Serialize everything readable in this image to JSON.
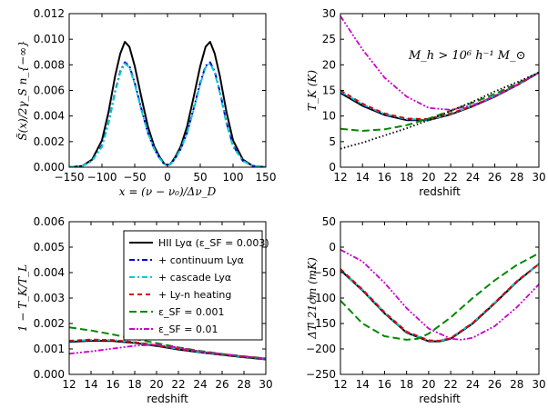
{
  "chart_data": [
    {
      "type": "line",
      "xlabel": "x = (ν − ν₀)/Δν_D",
      "ylabel": "S̃(x)/2γ_S n_{−∞}",
      "xlim": [
        -150,
        150
      ],
      "ylim": [
        0,
        0.012
      ],
      "xticks": [
        "−150",
        "−100",
        "−50",
        "0",
        "50",
        "100",
        "150"
      ],
      "yticks": [
        "0.000",
        "0.002",
        "0.004",
        "0.006",
        "0.008",
        "0.010",
        "0.012"
      ],
      "series": [
        {
          "color": "#000000",
          "dash": "solid",
          "x": [
            -150,
            -130,
            -115,
            -100,
            -90,
            -80,
            -72,
            -65,
            -58,
            -50,
            -40,
            -30,
            -20,
            -12,
            -6,
            -3,
            0,
            3,
            6,
            12,
            20,
            30,
            40,
            50,
            58,
            65,
            72,
            80,
            90,
            100,
            115,
            130,
            150
          ],
          "y": [
            0.0,
            0.0001,
            0.0006,
            0.0021,
            0.0043,
            0.0071,
            0.0089,
            0.0098,
            0.0094,
            0.0079,
            0.0055,
            0.0032,
            0.0016,
            0.0008,
            0.00035,
            0.0002,
            0.0002,
            0.0002,
            0.00035,
            0.0008,
            0.0016,
            0.0032,
            0.0055,
            0.0079,
            0.0094,
            0.0098,
            0.0089,
            0.0071,
            0.0043,
            0.0021,
            0.0006,
            0.0001,
            0.0
          ]
        },
        {
          "color": "#0000cc",
          "dash": "dashdot",
          "x": [
            -150,
            -130,
            -115,
            -100,
            -90,
            -80,
            -72,
            -65,
            -58,
            -50,
            -40,
            -30,
            -20,
            -12,
            -6,
            -3,
            0,
            3,
            6,
            12,
            20,
            30,
            40,
            50,
            58,
            65,
            72,
            80,
            90,
            100,
            115,
            130,
            150
          ],
          "y": [
            0.0,
            0.0001,
            0.0005,
            0.0017,
            0.0035,
            0.0059,
            0.0075,
            0.0082,
            0.0079,
            0.0066,
            0.0046,
            0.0027,
            0.0014,
            0.0007,
            0.0003,
            0.0002,
            0.0002,
            0.0002,
            0.0003,
            0.0007,
            0.0014,
            0.0027,
            0.0046,
            0.0066,
            0.0079,
            0.0082,
            0.0075,
            0.0059,
            0.0035,
            0.0017,
            0.0005,
            0.0001,
            0.0
          ]
        },
        {
          "color": "#00cccc",
          "dash": "dashdot",
          "x": [
            -150,
            -130,
            -115,
            -100,
            -90,
            -80,
            -72,
            -65,
            -58,
            -50,
            -40,
            -30,
            -20,
            -12,
            -6,
            -3,
            0,
            3,
            6,
            12,
            20,
            30,
            40,
            50,
            58,
            65,
            72,
            80,
            90,
            100,
            115,
            130,
            150
          ],
          "y": [
            0.0,
            0.0001,
            0.0005,
            0.0016,
            0.0034,
            0.0058,
            0.0074,
            0.0081,
            0.0078,
            0.0065,
            0.0045,
            0.0027,
            0.0014,
            0.0007,
            0.0003,
            0.0002,
            0.0002,
            0.0002,
            0.0003,
            0.0007,
            0.0014,
            0.0027,
            0.0045,
            0.0065,
            0.0078,
            0.0081,
            0.0074,
            0.0058,
            0.0034,
            0.0016,
            0.0005,
            0.0001,
            0.0
          ]
        }
      ]
    },
    {
      "type": "line",
      "xlabel": "redshift",
      "ylabel": "T_K (K)",
      "annotation": "M_h > 10⁶ h⁻¹ M_⊙",
      "xlim": [
        12,
        30
      ],
      "ylim": [
        0,
        30
      ],
      "xticks": [
        "12",
        "14",
        "16",
        "18",
        "20",
        "22",
        "24",
        "26",
        "28",
        "30"
      ],
      "yticks": [
        "0",
        "5",
        "10",
        "15",
        "20",
        "25",
        "30"
      ],
      "series": [
        {
          "color": "#000000",
          "dash": "solid",
          "x": [
            12,
            14,
            16,
            18,
            20,
            22,
            24,
            26,
            28,
            30
          ],
          "y": [
            14.5,
            12.0,
            10.2,
            9.2,
            9.2,
            10.3,
            11.9,
            13.8,
            16.0,
            18.5
          ]
        },
        {
          "color": "#0000cc",
          "dash": "dashdot",
          "x": [
            12,
            14,
            16,
            18,
            20,
            22,
            24,
            26,
            28,
            30
          ],
          "y": [
            14.7,
            12.2,
            10.3,
            9.3,
            9.3,
            10.4,
            12.0,
            13.9,
            16.0,
            18.5
          ]
        },
        {
          "color": "#00cccc",
          "dash": "dashdot",
          "x": [
            12,
            14,
            16,
            18,
            20,
            22,
            24,
            26,
            28,
            30
          ],
          "y": [
            14.8,
            12.3,
            10.4,
            9.4,
            9.3,
            10.4,
            12.0,
            13.9,
            16.0,
            18.5
          ]
        },
        {
          "color": "#dd0000",
          "dash": "dash",
          "x": [
            12,
            14,
            16,
            18,
            20,
            22,
            24,
            26,
            28,
            30
          ],
          "y": [
            15.0,
            12.4,
            10.5,
            9.5,
            9.4,
            10.5,
            12.0,
            13.9,
            16.0,
            18.5
          ]
        },
        {
          "color": "#008800",
          "dash": "longdash",
          "x": [
            12,
            14,
            16,
            18,
            20,
            22,
            24,
            26,
            28,
            30
          ],
          "y": [
            7.5,
            7.1,
            7.4,
            8.2,
            9.5,
            11.0,
            12.6,
            14.3,
            16.3,
            18.5
          ]
        },
        {
          "color": "#cc00cc",
          "dash": "dashdotdot",
          "x": [
            12,
            14,
            16,
            18,
            20,
            22,
            24,
            26,
            28,
            30
          ],
          "y": [
            29.5,
            23.0,
            17.5,
            13.8,
            11.6,
            11.2,
            12.1,
            13.9,
            16.1,
            18.5
          ]
        },
        {
          "color": "#000000",
          "dash": "dot",
          "x": [
            12,
            14,
            16,
            18,
            20,
            22,
            24,
            26,
            28,
            30
          ],
          "y": [
            3.6,
            4.8,
            6.2,
            7.6,
            9.2,
            11.0,
            12.8,
            14.8,
            16.6,
            18.5
          ]
        }
      ]
    },
    {
      "type": "line",
      "xlabel": "redshift",
      "ylabel": "1 − T_K/T_L",
      "xlim": [
        12,
        30
      ],
      "ylim": [
        0,
        0.0065
      ],
      "xticks": [
        "12",
        "14",
        "16",
        "18",
        "20",
        "22",
        "24",
        "26",
        "28",
        "30"
      ],
      "yticks": [
        "0.000",
        "0.001",
        "0.002",
        "0.003",
        "0.004",
        "0.005",
        "0.006"
      ],
      "series": [
        {
          "color": "#000000",
          "dash": "solid",
          "x": [
            12,
            14,
            16,
            18,
            20,
            22,
            24,
            26,
            28,
            30
          ],
          "y": [
            0.00138,
            0.00143,
            0.00142,
            0.00134,
            0.00121,
            0.00106,
            0.00094,
            0.00083,
            0.00073,
            0.00064
          ]
        },
        {
          "color": "#0000cc",
          "dash": "dashdot",
          "x": [
            12,
            14,
            16,
            18,
            20,
            22,
            24,
            26,
            28,
            30
          ],
          "y": [
            0.00141,
            0.00146,
            0.00145,
            0.00136,
            0.00123,
            0.00108,
            0.00096,
            0.00085,
            0.00075,
            0.00066
          ]
        },
        {
          "color": "#00cccc",
          "dash": "dashdot",
          "x": [
            12,
            14,
            16,
            18,
            20,
            22,
            24,
            26,
            28,
            30
          ],
          "y": [
            0.00142,
            0.00147,
            0.00146,
            0.00137,
            0.00124,
            0.00109,
            0.00096,
            0.00085,
            0.00075,
            0.00066
          ]
        },
        {
          "color": "#dd0000",
          "dash": "dash",
          "x": [
            12,
            14,
            16,
            18,
            20,
            22,
            24,
            26,
            28,
            30
          ],
          "y": [
            0.00143,
            0.00148,
            0.00146,
            0.00137,
            0.00124,
            0.00109,
            0.00097,
            0.00086,
            0.00076,
            0.00067
          ]
        },
        {
          "color": "#008800",
          "dash": "longdash",
          "x": [
            12,
            14,
            16,
            18,
            20,
            22,
            24,
            26,
            28,
            30
          ],
          "y": [
            0.002,
            0.00187,
            0.0017,
            0.00151,
            0.00133,
            0.00115,
            0.001,
            0.00087,
            0.00077,
            0.00068
          ]
        },
        {
          "color": "#cc00cc",
          "dash": "dashdotdot",
          "x": [
            12,
            14,
            16,
            18,
            20,
            22,
            24,
            26,
            28,
            30
          ],
          "y": [
            0.00088,
            0.00098,
            0.0011,
            0.00122,
            0.00126,
            0.00114,
            0.00098,
            0.00087,
            0.00077,
            0.00068
          ]
        }
      ],
      "legend": {
        "position": "top-right",
        "entries": [
          {
            "label": "HII Lyα (ε_SF = 0.003)",
            "color": "#000000",
            "dash": "solid"
          },
          {
            "label": "+ continuum Lyα",
            "color": "#0000cc",
            "dash": "dashdot"
          },
          {
            "label": "+ cascade Lyα",
            "color": "#00cccc",
            "dash": "dashdot"
          },
          {
            "label": "+ Ly-n heating",
            "color": "#dd0000",
            "dash": "dash"
          },
          {
            "label": "ε_SF = 0.001",
            "color": "#008800",
            "dash": "longdash"
          },
          {
            "label": "ε_SF = 0.01",
            "color": "#cc00cc",
            "dash": "dashdotdot"
          }
        ]
      }
    },
    {
      "type": "line",
      "xlabel": "redshift",
      "ylabel": "ΔT_21cm (mK)",
      "xlim": [
        12,
        30
      ],
      "ylim": [
        -250,
        50
      ],
      "xticks": [
        "12",
        "14",
        "16",
        "18",
        "20",
        "22",
        "24",
        "26",
        "28",
        "30"
      ],
      "yticks": [
        "−250",
        "−200",
        "−150",
        "−100",
        "−50",
        "0",
        "50"
      ],
      "series": [
        {
          "color": "#000000",
          "dash": "solid",
          "x": [
            12,
            14,
            16,
            18,
            20,
            21,
            22,
            24,
            26,
            28,
            30
          ],
          "y": [
            -45,
            -85,
            -130,
            -168,
            -185,
            -185,
            -180,
            -150,
            -110,
            -68,
            -33
          ]
        },
        {
          "color": "#0000cc",
          "dash": "dashdot",
          "x": [
            12,
            14,
            16,
            18,
            20,
            21,
            22,
            24,
            26,
            28,
            30
          ],
          "y": [
            -44,
            -84,
            -129,
            -167,
            -184,
            -184,
            -179,
            -149,
            -109,
            -67,
            -33
          ]
        },
        {
          "color": "#00cccc",
          "dash": "dashdot",
          "x": [
            12,
            14,
            16,
            18,
            20,
            21,
            22,
            24,
            26,
            28,
            30
          ],
          "y": [
            -44,
            -84,
            -129,
            -167,
            -184,
            -184,
            -179,
            -149,
            -109,
            -67,
            -33
          ]
        },
        {
          "color": "#dd0000",
          "dash": "dash",
          "x": [
            12,
            14,
            16,
            18,
            20,
            21,
            22,
            24,
            26,
            28,
            30
          ],
          "y": [
            -43,
            -83,
            -128,
            -166,
            -183,
            -184,
            -179,
            -149,
            -109,
            -67,
            -33
          ]
        },
        {
          "color": "#008800",
          "dash": "longdash",
          "x": [
            12,
            14,
            16,
            18,
            19,
            20,
            22,
            24,
            26,
            28,
            30
          ],
          "y": [
            -105,
            -150,
            -175,
            -182,
            -180,
            -170,
            -138,
            -100,
            -65,
            -35,
            -12
          ]
        },
        {
          "color": "#cc00cc",
          "dash": "dashdotdot",
          "x": [
            12,
            14,
            16,
            18,
            20,
            22,
            23,
            24,
            26,
            28,
            30
          ],
          "y": [
            -5,
            -28,
            -70,
            -120,
            -160,
            -180,
            -182,
            -178,
            -155,
            -118,
            -73
          ]
        }
      ]
    }
  ]
}
